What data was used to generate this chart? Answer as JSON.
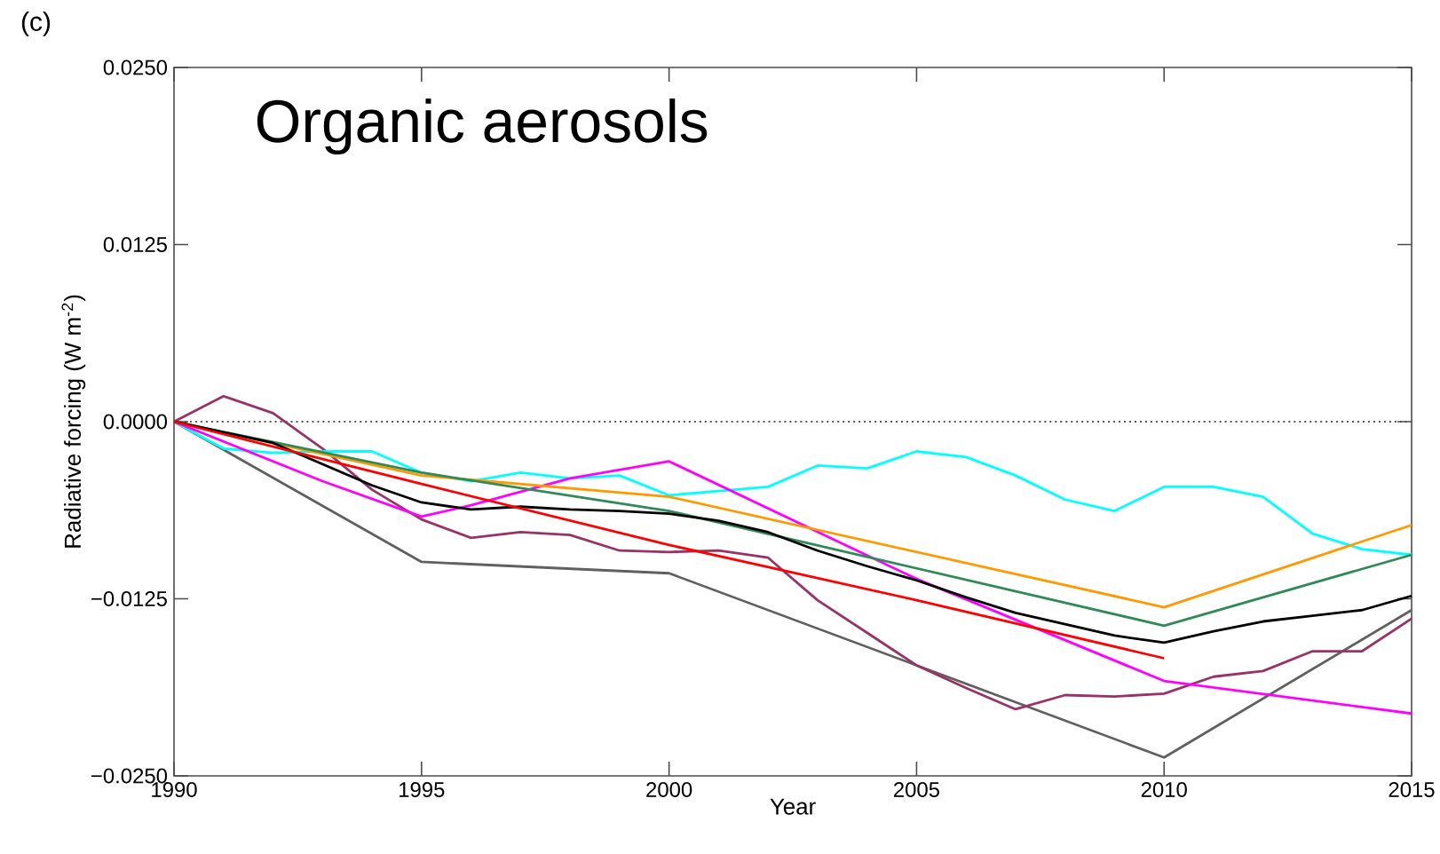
{
  "chart_data": {
    "type": "line",
    "title": "Organic aerosols",
    "xlabel": "Year",
    "ylabel": "Radiative forcing (W m$^{-2}$)",
    "annotations": [
      "(c)"
    ],
    "xlim": [
      1990,
      2015
    ],
    "xticks": [
      1990,
      1995,
      2000,
      2005,
      2010,
      2015
    ],
    "ylim": [
      -0.025,
      0.025
    ],
    "yticks": [
      {
        "value": -0.025,
        "label": "−0.0250"
      },
      {
        "value": -0.0125,
        "label": "−0.0125"
      },
      {
        "value": 0,
        "label": "0.0000"
      },
      {
        "value": 0.0125,
        "label": "0.0125"
      },
      {
        "value": 0.025,
        "label": "0.0250"
      }
    ],
    "grid": false,
    "line_style": "solid",
    "ref_lines": [
      {
        "axis": "y",
        "value": 0,
        "line_style": "dotted",
        "color": "#555555"
      }
    ],
    "series": [
      {
        "color": "#606060",
        "x": [
          1990,
          1995,
          2000,
          2010,
          2015
        ],
        "values": [
          0,
          -0.0099,
          -0.0107,
          -0.0237,
          -0.0133
        ]
      },
      {
        "color": "#993366",
        "x": [
          1990,
          1991,
          1992,
          1993,
          1994,
          1995,
          1996,
          1997,
          1998,
          1999,
          2000,
          2001,
          2002,
          2003,
          2004,
          2005,
          2006,
          2007,
          2008,
          2009,
          2010,
          2011,
          2012,
          2013,
          2014,
          2015
        ],
        "values": [
          0,
          0.0018,
          0.0006,
          -0.0019,
          -0.0048,
          -0.0069,
          -0.0082,
          -0.0078,
          -0.008,
          -0.0091,
          -0.0092,
          -0.0091,
          -0.0096,
          -0.0126,
          -0.0149,
          -0.0172,
          -0.0188,
          -0.0203,
          -0.0193,
          -0.0194,
          -0.0192,
          -0.018,
          -0.0176,
          -0.0162,
          -0.0162,
          -0.0139
        ]
      },
      {
        "color": "#00ffff",
        "x": [
          1990,
          1991,
          1992,
          1993,
          1994,
          1995,
          1996,
          1997,
          1998,
          1999,
          2000,
          2001,
          2002,
          2003,
          2004,
          2005,
          2006,
          2007,
          2008,
          2009,
          2010,
          2011,
          2012,
          2013,
          2014,
          2015
        ],
        "values": [
          0,
          -0.0019,
          -0.0022,
          -0.0021,
          -0.0021,
          -0.0036,
          -0.0042,
          -0.0036,
          -0.004,
          -0.0038,
          -0.0052,
          -0.0049,
          -0.0046,
          -0.0031,
          -0.0033,
          -0.0021,
          -0.0025,
          -0.0038,
          -0.0055,
          -0.0063,
          -0.0046,
          -0.0046,
          -0.0053,
          -0.0079,
          -0.009,
          -0.0094
        ]
      },
      {
        "color": "#ff00ff",
        "x": [
          1990,
          1993,
          1995,
          1996,
          1998,
          2000,
          2005,
          2010,
          2015
        ],
        "values": [
          0,
          -0.0042,
          -0.0067,
          -0.0059,
          -0.004,
          -0.0028,
          -0.0111,
          -0.0183,
          -0.0206
        ]
      },
      {
        "color": "#ff9900",
        "x": [
          1990,
          1995,
          2000,
          2010,
          2015
        ],
        "values": [
          0,
          -0.0038,
          -0.0053,
          -0.0131,
          -0.0073
        ]
      },
      {
        "color": "#2e8b57",
        "x": [
          1990,
          1995,
          2000,
          2010,
          2015
        ],
        "values": [
          0,
          -0.0036,
          -0.0063,
          -0.0144,
          -0.0094
        ]
      },
      {
        "color": "#000000",
        "x": [
          1990,
          1992,
          1994,
          1995,
          1996,
          1997,
          1998,
          1999,
          2000,
          2001,
          2002,
          2003,
          2004,
          2005,
          2006,
          2007,
          2008,
          2009,
          2010,
          2011,
          2012,
          2013,
          2014,
          2015
        ],
        "values": [
          0,
          -0.0015,
          -0.0045,
          -0.0057,
          -0.0062,
          -0.006,
          -0.0062,
          -0.0063,
          -0.0065,
          -0.007,
          -0.0078,
          -0.0091,
          -0.0102,
          -0.0112,
          -0.0124,
          -0.0135,
          -0.0143,
          -0.0151,
          -0.0156,
          -0.0148,
          -0.0141,
          -0.0137,
          -0.0133,
          -0.0123
        ]
      },
      {
        "color": "#ff0000",
        "x": [
          1990,
          1995,
          2000,
          2005,
          2010
        ],
        "values": [
          0,
          -0.0044,
          -0.0087,
          -0.0126,
          -0.0167
        ]
      }
    ]
  }
}
